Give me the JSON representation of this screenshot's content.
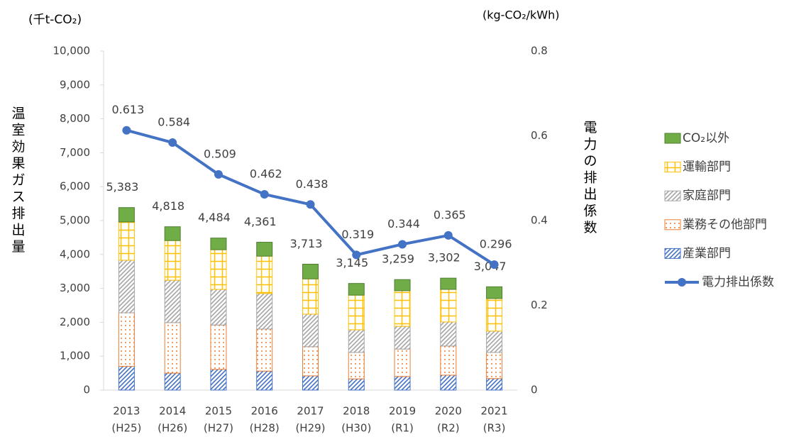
{
  "chart_data": {
    "type": "stacked-bar-line",
    "y_unit": "(千t-CO₂)",
    "y2_unit": "(kg-CO₂/kWh)",
    "ylabel": "温室効果ガス排出量",
    "y2label": "電力の排出係数",
    "categories": [
      [
        "2013",
        "(H25)"
      ],
      [
        "2014",
        "(H26)"
      ],
      [
        "2015",
        "(H27)"
      ],
      [
        "2016",
        "(H28)"
      ],
      [
        "2017",
        "(H29)"
      ],
      [
        "2018",
        "(H30)"
      ],
      [
        "2019",
        "(R1)"
      ],
      [
        "2020",
        "(R2)"
      ],
      [
        "2021",
        "(R3)"
      ]
    ],
    "series": [
      {
        "name": "産業部門",
        "color": "#4472c4",
        "pattern": "hatch",
        "values": [
          700,
          500,
          610,
          560,
          420,
          330,
          400,
          440,
          340
        ]
      },
      {
        "name": "業務その他部門",
        "color": "#ed7d31",
        "pattern": "dots",
        "values": [
          1580,
          1490,
          1310,
          1240,
          860,
          780,
          810,
          860,
          770
        ]
      },
      {
        "name": "家庭部門",
        "color": "#a5a5a5",
        "pattern": "hatch",
        "values": [
          1550,
          1250,
          1050,
          1050,
          960,
          670,
          670,
          710,
          630
        ]
      },
      {
        "name": "運輸部門",
        "color": "#ffc000",
        "pattern": "grid",
        "values": [
          1130,
          1170,
          1170,
          1100,
          1040,
          1020,
          1050,
          960,
          960
        ]
      },
      {
        "name": "CO₂以外",
        "color": "#70ad47",
        "pattern": "solid",
        "values": [
          423,
          408,
          344,
          411,
          433,
          345,
          329,
          332,
          347
        ]
      },
      {
        "name": "電力排出係数",
        "color": "#4472c4",
        "type": "line",
        "axis": "y2",
        "values": [
          0.613,
          0.584,
          0.509,
          0.462,
          0.438,
          0.319,
          0.344,
          0.365,
          0.296
        ]
      }
    ],
    "totals": [
      5383,
      4818,
      4484,
      4361,
      3713,
      3145,
      3259,
      3302,
      3047
    ],
    "total_labels": [
      "5,383",
      "4,818",
      "4,484",
      "4,361",
      "3,713",
      "3,145",
      "3,259",
      "3,302",
      "3,047"
    ],
    "ylim": [
      0,
      10000
    ],
    "yticks": [
      0,
      {
        "value": 1000,
        "label": "1,000"
      },
      {
        "value": 2000,
        "label": "2,000"
      },
      {
        "value": 3000,
        "label": "3,000"
      },
      {
        "value": 4000,
        "label": "4,000"
      },
      {
        "value": 5000,
        "label": "5,000"
      },
      {
        "value": 6000,
        "label": "6,000"
      },
      {
        "value": 7000,
        "label": "7,000"
      },
      {
        "value": 8000,
        "label": "8,000"
      },
      {
        "value": 9000,
        "label": "9,000"
      },
      {
        "value": 10000,
        "label": "10,000"
      }
    ],
    "y2lim": [
      0,
      0.8
    ],
    "y2ticks": [
      0,
      0.2,
      0.4,
      0.6,
      0.8
    ],
    "legend": "right",
    "grid": false
  }
}
